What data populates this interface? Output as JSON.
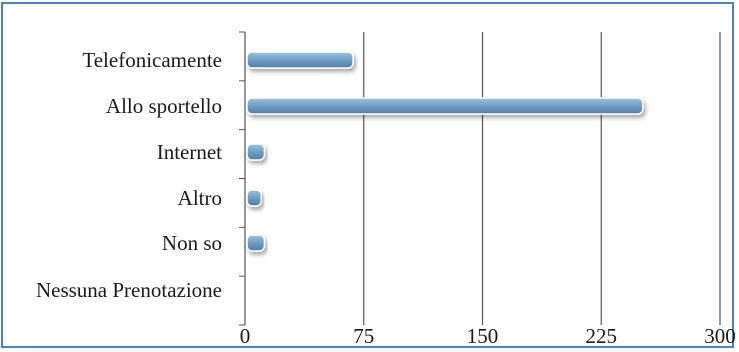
{
  "chart_data": {
    "type": "bar",
    "orientation": "horizontal",
    "categories": [
      "Telefonicamente",
      "Allo sportello",
      "Internet",
      "Altro",
      "Non so",
      "Nessuna Prenotazione"
    ],
    "values": [
      67,
      250,
      11,
      9,
      11,
      0
    ],
    "title": "",
    "xlabel": "",
    "ylabel": "",
    "xlim": [
      0,
      300
    ],
    "x_ticks": [
      "0",
      "75",
      "150",
      "225",
      "300"
    ],
    "grid": "vertical",
    "legend": "none",
    "colors": {
      "bar": "#7aa6c8",
      "bar_dark": "#4f7ea8",
      "grid": "#555555",
      "frame": "#4a82c4"
    }
  }
}
